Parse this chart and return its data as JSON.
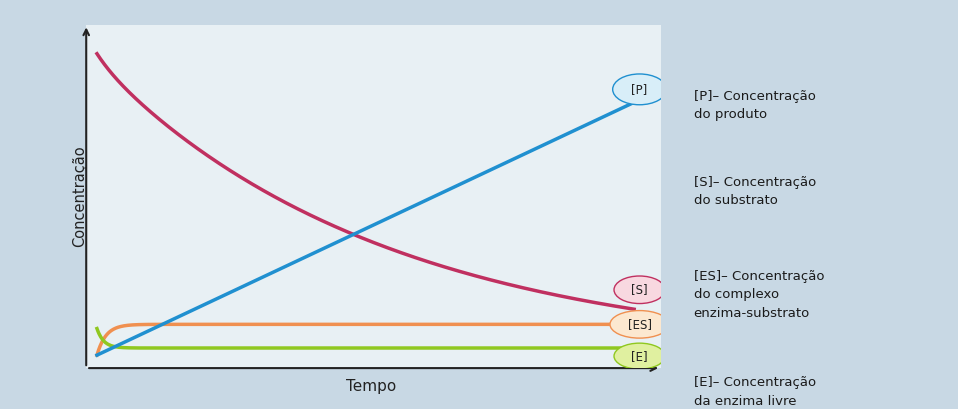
{
  "bg_color": "#c8d8e4",
  "plot_bg_color": "#e8f0f4",
  "axis_color": "#222222",
  "ylabel": "Concentração",
  "xlabel": "Tempo",
  "line_S_color": "#c03060",
  "line_P_color": "#2090d0",
  "line_ES_color": "#f09050",
  "line_E_color": "#90c820",
  "ellipse_P_face": "#d8eef8",
  "ellipse_P_edge": "#2090d0",
  "ellipse_S_face": "#f8d8e0",
  "ellipse_S_edge": "#c03060",
  "ellipse_ES_face": "#fce8d0",
  "ellipse_ES_edge": "#f09050",
  "ellipse_E_face": "#e0f0a0",
  "ellipse_E_edge": "#90c820",
  "legend_texts": [
    "[P]– Concentração\ndo produto",
    "[S]– Concentração\ndo substrato",
    "[ES]– Concentração\ndo complexo\nenzima-substrato",
    "[E]– Concentração\nda enzima livre"
  ]
}
